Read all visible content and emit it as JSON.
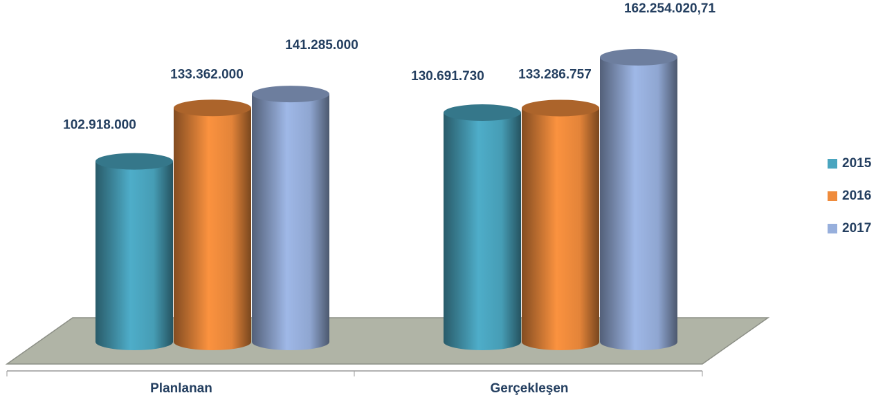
{
  "chart_data": {
    "type": "bar3d",
    "categories": [
      "Planlanan",
      "Gerçekleşen"
    ],
    "series": [
      {
        "name": "2015",
        "color": "#4aa5bf",
        "values": [
          102918000,
          130691730
        ],
        "value_labels": [
          "102.918.000",
          "130.691.730"
        ]
      },
      {
        "name": "2016",
        "color": "#ef8b3c",
        "values": [
          133362000,
          133286757
        ],
        "value_labels": [
          "133.362.000",
          "133.286.757"
        ]
      },
      {
        "name": "2017",
        "color": "#97afdc",
        "values": [
          141285000,
          162254020.71
        ],
        "value_labels": [
          "141.285.000",
          "162.254.020,71"
        ]
      }
    ],
    "legend": "right"
  }
}
